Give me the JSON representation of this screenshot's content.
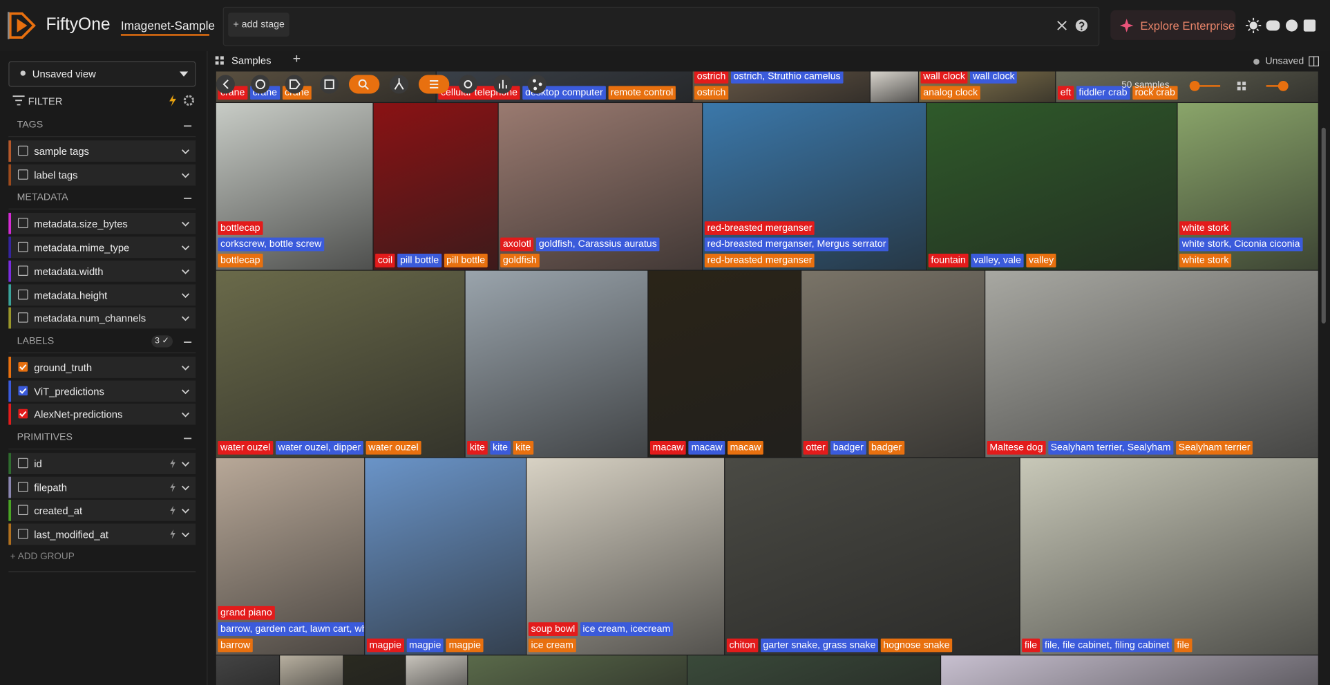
{
  "header": {
    "app_name": "FiftyOne",
    "dataset": "Imagenet-Sample",
    "add_stage": "+ add stage",
    "explore": "Explore Enterprise"
  },
  "tabs": {
    "samples": "Samples",
    "add": "+",
    "status": "Unsaved"
  },
  "sidebar": {
    "view": "Unsaved view",
    "filter": "FILTER",
    "groups": [
      {
        "title": "TAGS",
        "items": [
          {
            "name": "sample tags",
            "color": "#b5582a"
          },
          {
            "name": "label tags",
            "color": "#9c4a1c"
          }
        ]
      },
      {
        "title": "METADATA",
        "items": [
          {
            "name": "metadata.size_bytes",
            "color": "#d42bd4"
          },
          {
            "name": "metadata.mime_type",
            "color": "#35249e"
          },
          {
            "name": "metadata.width",
            "color": "#7a2de0"
          },
          {
            "name": "metadata.height",
            "color": "#3aa39a"
          },
          {
            "name": "metadata.num_channels",
            "color": "#9a972a"
          }
        ]
      },
      {
        "title": "LABELS",
        "badge": "3 ✓",
        "items": [
          {
            "name": "ground_truth",
            "color": "#e8700f",
            "checked": true
          },
          {
            "name": "ViT_predictions",
            "color": "#3b5bdb",
            "checked": true
          },
          {
            "name": "AlexNet-predictions",
            "color": "#e31b1b",
            "checked": true
          }
        ]
      },
      {
        "title": "PRIMITIVES",
        "items": [
          {
            "name": "id",
            "color": "#2e6b2e",
            "lightning": true
          },
          {
            "name": "filepath",
            "color": "#8a86b0",
            "lightning": true
          },
          {
            "name": "created_at",
            "color": "#4aa524",
            "lightning": true
          },
          {
            "name": "last_modified_at",
            "color": "#b0701e",
            "lightning": true
          }
        ]
      }
    ],
    "add_group": "+ ADD GROUP"
  },
  "grid": {
    "sample_count": "50 samples",
    "label_colors": {
      "alexnet": "#e31b1b",
      "vit": "#3b5bdb",
      "ground_truth": "#e8700f"
    },
    "rows": [
      [
        {
          "alexnet": "crane",
          "vit": "crane",
          "ground_truth": "crane"
        },
        {
          "alexnet": "cellular telephone",
          "vit": "desktop computer",
          "ground_truth": "remote control"
        },
        {
          "alexnet": "ostrich",
          "vit": "ostrich, Struthio camelus",
          "ground_truth": "ostrich"
        },
        {},
        {
          "alexnet": "wall clock",
          "vit": "wall clock",
          "ground_truth": "analog clock"
        },
        {
          "alexnet": "eft",
          "vit": "fiddler crab",
          "ground_truth": "rock crab"
        }
      ],
      [
        {
          "alexnet": "bottlecap",
          "vit": "corkscrew, bottle screw",
          "ground_truth": "bottlecap"
        },
        {
          "alexnet": "coil",
          "vit": "pill bottle",
          "ground_truth": "pill bottle"
        },
        {
          "alexnet": "axolotl",
          "vit": "goldfish, Carassius auratus",
          "ground_truth": "goldfish"
        },
        {
          "alexnet": "red-breasted merganser",
          "vit": "red-breasted merganser, Mergus serrator",
          "ground_truth": "red-breasted merganser"
        },
        {
          "alexnet": "fountain",
          "vit": "valley, vale",
          "ground_truth": "valley"
        },
        {
          "alexnet": "white stork",
          "vit": "white stork, Ciconia ciconia",
          "ground_truth": "white stork"
        }
      ],
      [
        {
          "alexnet": "water ouzel",
          "vit": "water ouzel, dipper",
          "ground_truth": "water ouzel"
        },
        {
          "alexnet": "kite",
          "vit": "kite",
          "ground_truth": "kite"
        },
        {
          "alexnet": "macaw",
          "vit": "macaw",
          "ground_truth": "macaw"
        },
        {
          "alexnet": "otter",
          "vit": "badger",
          "ground_truth": "badger"
        },
        {
          "alexnet": "Maltese dog",
          "vit": "Sealyham terrier, Sealyham",
          "ground_truth": "Sealyham terrier"
        }
      ],
      [
        {
          "alexnet": "grand piano",
          "vit": "barrow, garden cart, lawn cart, wh...",
          "ground_truth": "barrow"
        },
        {
          "alexnet": "magpie",
          "vit": "magpie",
          "ground_truth": "magpie"
        },
        {
          "alexnet": "soup bowl",
          "vit": "ice cream, icecream",
          "ground_truth": "ice cream"
        },
        {
          "alexnet": "chiton",
          "vit": "garter snake, grass snake",
          "ground_truth": "hognose snake"
        },
        {
          "alexnet": "file",
          "vit": "file, file cabinet, filing cabinet",
          "ground_truth": "file"
        }
      ]
    ]
  }
}
